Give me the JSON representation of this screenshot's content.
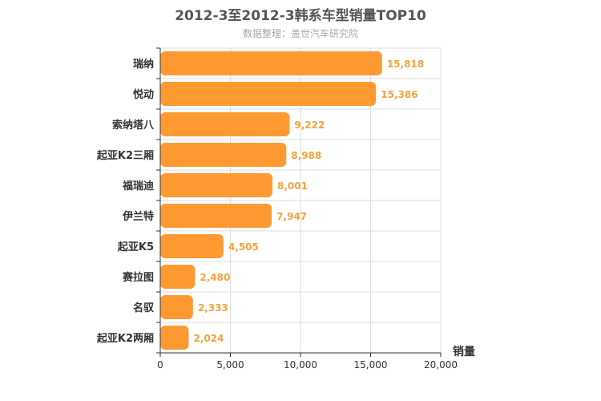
{
  "chart_data": {
    "type": "bar",
    "orientation": "horizontal",
    "title": "2012-3至2012-3韩系车型销量TOP10",
    "subtitle": "数据整理：盖世汽车研究院",
    "xlabel": "销量",
    "categories": [
      "瑞纳",
      "悦动",
      "索纳塔八",
      "起亚K2三厢",
      "福瑞迪",
      "伊兰特",
      "起亚K5",
      "赛拉图",
      "名驭",
      "起亚K2两厢"
    ],
    "values": [
      15818,
      15386,
      9222,
      8988,
      8001,
      7947,
      4505,
      2480,
      2333,
      2024
    ],
    "value_labels": [
      "15,818",
      "15,386",
      "9,222",
      "8,988",
      "8,001",
      "7,947",
      "4,505",
      "2,480",
      "2,333",
      "2,024"
    ],
    "xlim": [
      0,
      20000
    ],
    "xticks": [
      0,
      5000,
      10000,
      15000,
      20000
    ],
    "xtick_labels": [
      "0",
      "5,000",
      "10,000",
      "15,000",
      "20,000"
    ],
    "grid": true,
    "legend": "none",
    "colors": {
      "bar": "#ff9a33",
      "value_label": "#f5a23a",
      "grid": "#dddddd",
      "axis": "#333333"
    }
  }
}
